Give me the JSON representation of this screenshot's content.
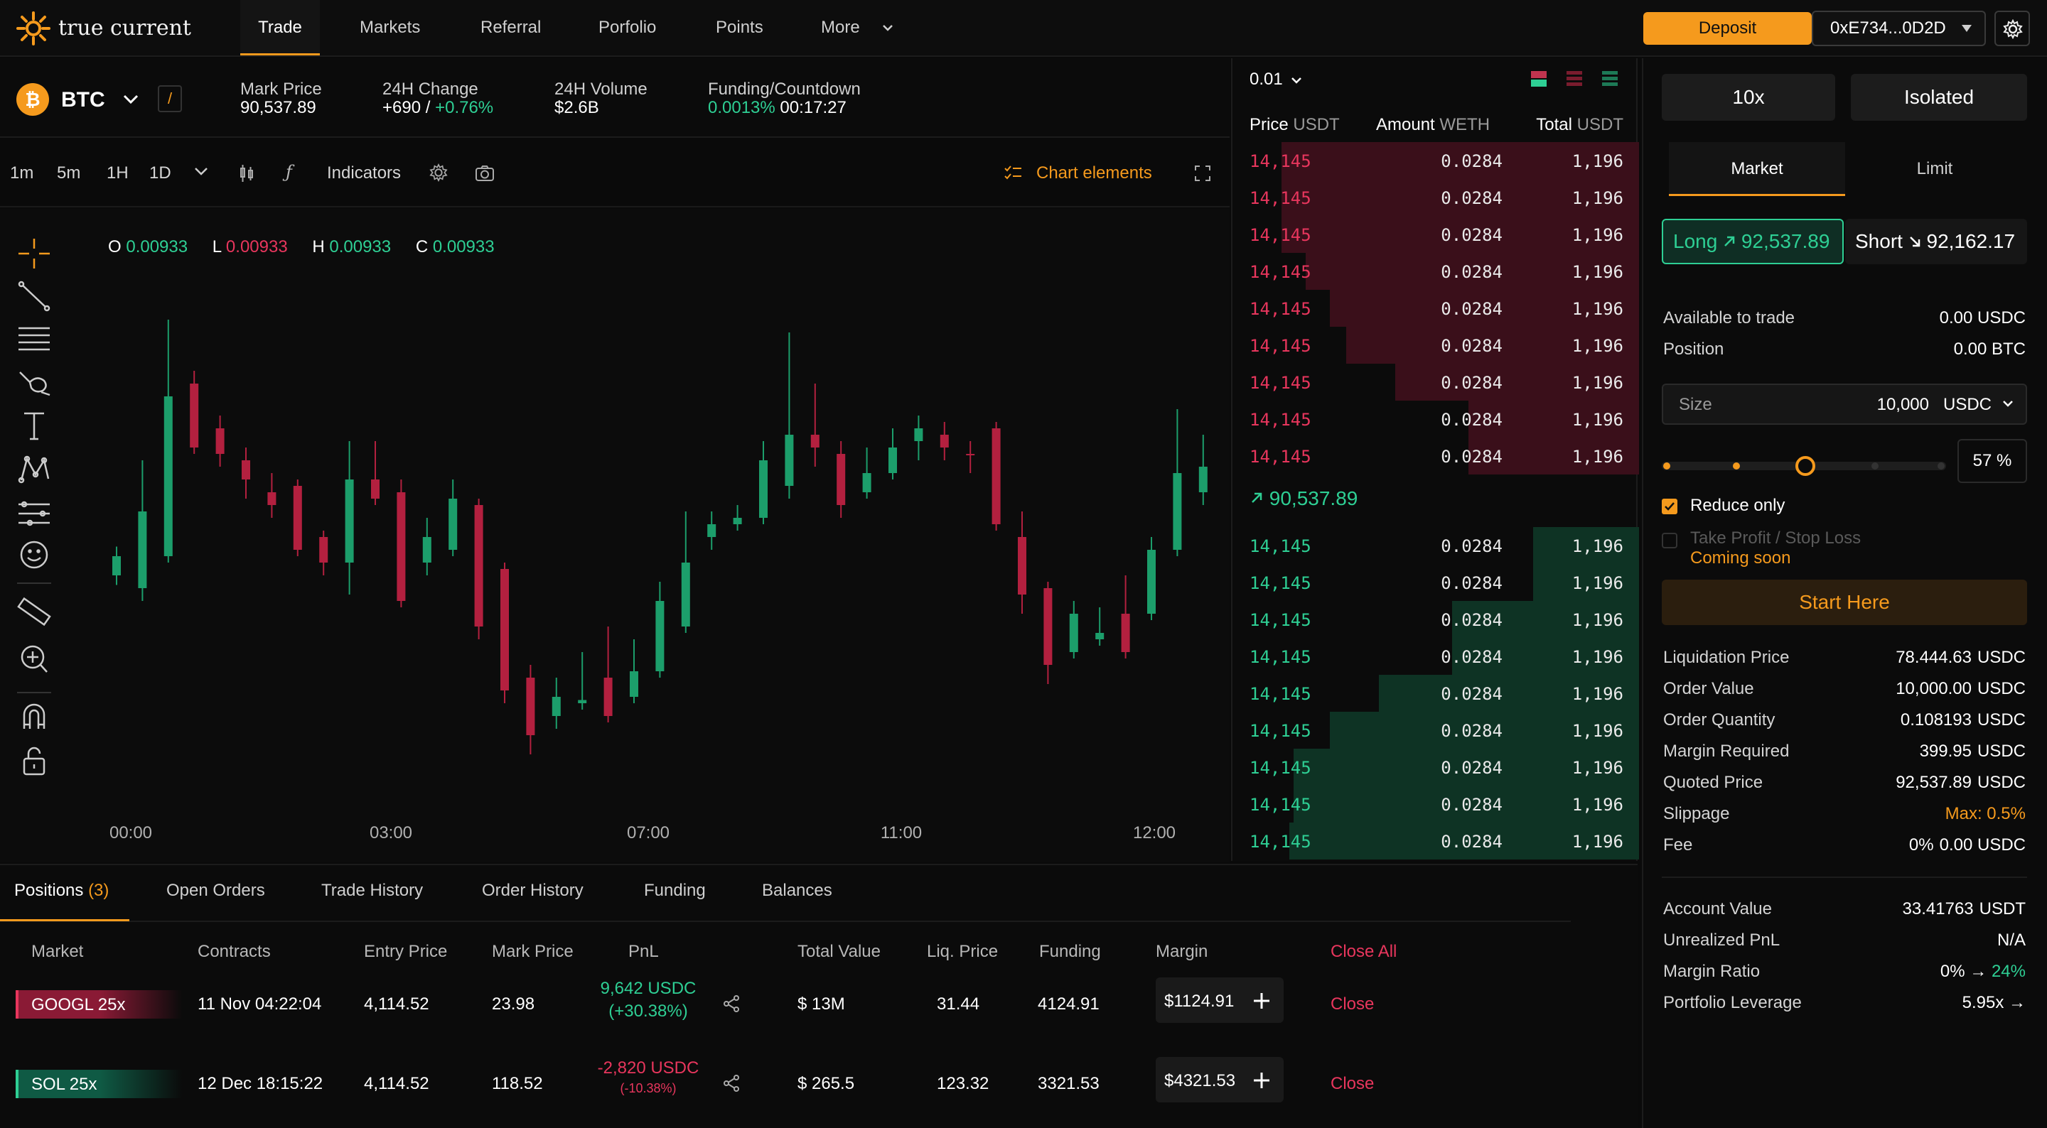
{
  "app": {
    "brand": "true current"
  },
  "nav": {
    "tabs": [
      "Trade",
      "Markets",
      "Referral",
      "Porfolio",
      "Points",
      "More"
    ],
    "deposit": "Deposit",
    "wallet": "0xE734...0D2D"
  },
  "market": {
    "symbol": "BTC",
    "star": "/",
    "mark_price_label": "Mark Price",
    "mark_price": "90,537.89",
    "change_label": "24H Change",
    "change_abs": "+690 /",
    "change_pct": "+0.76%",
    "volume_label": "24H Volume",
    "volume": "$2.6B",
    "funding_label": "Funding/Countdown",
    "funding_rate": "0.0013%",
    "countdown": "00:17:27"
  },
  "chart_toolbar": {
    "intervals": [
      "1m",
      "5m",
      "1H",
      "1D"
    ],
    "active_interval": "1H",
    "indicators": "Indicators",
    "chart_elements": "Chart elements"
  },
  "ohlc": {
    "o_label": "O",
    "o": "0.00933",
    "l_label": "L",
    "l": "0.00933",
    "h_label": "H",
    "h": "0.00933",
    "c_label": "C",
    "c": "0.00933"
  },
  "chart_data": {
    "type": "candlestick",
    "x_ticks": [
      "00:00",
      "03:00",
      "07:00",
      "11:00",
      "12:00"
    ],
    "candles": [
      {
        "o": 0.36,
        "c": 0.39,
        "h": 0.405,
        "l": 0.345
      },
      {
        "o": 0.34,
        "c": 0.46,
        "h": 0.54,
        "l": 0.32
      },
      {
        "o": 0.39,
        "c": 0.64,
        "h": 0.76,
        "l": 0.38
      },
      {
        "o": 0.66,
        "c": 0.56,
        "h": 0.68,
        "l": 0.55
      },
      {
        "o": 0.59,
        "c": 0.55,
        "h": 0.61,
        "l": 0.53
      },
      {
        "o": 0.54,
        "c": 0.51,
        "h": 0.56,
        "l": 0.48
      },
      {
        "o": 0.49,
        "c": 0.47,
        "h": 0.52,
        "l": 0.45
      },
      {
        "o": 0.5,
        "c": 0.4,
        "h": 0.51,
        "l": 0.39
      },
      {
        "o": 0.42,
        "c": 0.38,
        "h": 0.43,
        "l": 0.36
      },
      {
        "o": 0.38,
        "c": 0.51,
        "h": 0.57,
        "l": 0.33
      },
      {
        "o": 0.51,
        "c": 0.48,
        "h": 0.57,
        "l": 0.47
      },
      {
        "o": 0.49,
        "c": 0.32,
        "h": 0.51,
        "l": 0.31
      },
      {
        "o": 0.38,
        "c": 0.42,
        "h": 0.45,
        "l": 0.36
      },
      {
        "o": 0.4,
        "c": 0.48,
        "h": 0.51,
        "l": 0.39
      },
      {
        "o": 0.47,
        "c": 0.28,
        "h": 0.48,
        "l": 0.26
      },
      {
        "o": 0.37,
        "c": 0.18,
        "h": 0.38,
        "l": 0.16
      },
      {
        "o": 0.2,
        "c": 0.11,
        "h": 0.22,
        "l": 0.08
      },
      {
        "o": 0.14,
        "c": 0.17,
        "h": 0.2,
        "l": 0.12
      },
      {
        "o": 0.16,
        "c": 0.165,
        "h": 0.24,
        "l": 0.15
      },
      {
        "o": 0.2,
        "c": 0.14,
        "h": 0.28,
        "l": 0.13
      },
      {
        "o": 0.17,
        "c": 0.21,
        "h": 0.26,
        "l": 0.16
      },
      {
        "o": 0.21,
        "c": 0.32,
        "h": 0.35,
        "l": 0.2
      },
      {
        "o": 0.28,
        "c": 0.38,
        "h": 0.46,
        "l": 0.27
      },
      {
        "o": 0.42,
        "c": 0.44,
        "h": 0.46,
        "l": 0.4
      },
      {
        "o": 0.44,
        "c": 0.45,
        "h": 0.47,
        "l": 0.43
      },
      {
        "o": 0.45,
        "c": 0.54,
        "h": 0.57,
        "l": 0.44
      },
      {
        "o": 0.5,
        "c": 0.58,
        "h": 0.74,
        "l": 0.48
      },
      {
        "o": 0.58,
        "c": 0.56,
        "h": 0.66,
        "l": 0.53
      },
      {
        "o": 0.55,
        "c": 0.47,
        "h": 0.57,
        "l": 0.45
      },
      {
        "o": 0.49,
        "c": 0.52,
        "h": 0.56,
        "l": 0.48
      },
      {
        "o": 0.52,
        "c": 0.56,
        "h": 0.59,
        "l": 0.51
      },
      {
        "o": 0.57,
        "c": 0.59,
        "h": 0.61,
        "l": 0.54
      },
      {
        "o": 0.58,
        "c": 0.56,
        "h": 0.6,
        "l": 0.54
      },
      {
        "o": 0.55,
        "c": 0.548,
        "h": 0.57,
        "l": 0.52
      },
      {
        "o": 0.59,
        "c": 0.44,
        "h": 0.6,
        "l": 0.43
      },
      {
        "o": 0.42,
        "c": 0.33,
        "h": 0.46,
        "l": 0.3
      },
      {
        "o": 0.34,
        "c": 0.22,
        "h": 0.35,
        "l": 0.19
      },
      {
        "o": 0.24,
        "c": 0.3,
        "h": 0.32,
        "l": 0.23
      },
      {
        "o": 0.26,
        "c": 0.27,
        "h": 0.31,
        "l": 0.25
      },
      {
        "o": 0.3,
        "c": 0.24,
        "h": 0.36,
        "l": 0.23
      },
      {
        "o": 0.3,
        "c": 0.4,
        "h": 0.42,
        "l": 0.29
      },
      {
        "o": 0.4,
        "c": 0.52,
        "h": 0.62,
        "l": 0.39
      },
      {
        "o": 0.49,
        "c": 0.53,
        "h": 0.58,
        "l": 0.47
      }
    ]
  },
  "orderbook": {
    "tick": "0.01",
    "col_price": "Price",
    "col_price_unit": "USDT",
    "col_amount": "Amount",
    "col_amount_unit": "WETH",
    "col_total": "Total",
    "col_total_unit": "USDT",
    "asks": [
      {
        "price": "14,145",
        "amount": "0.0284",
        "total": "1,196",
        "depth": 0.88
      },
      {
        "price": "14,145",
        "amount": "0.0284",
        "total": "1,196",
        "depth": 0.88
      },
      {
        "price": "14,145",
        "amount": "0.0284",
        "total": "1,196",
        "depth": 0.88
      },
      {
        "price": "14,145",
        "amount": "0.0284",
        "total": "1,196",
        "depth": 0.82
      },
      {
        "price": "14,145",
        "amount": "0.0284",
        "total": "1,196",
        "depth": 0.76
      },
      {
        "price": "14,145",
        "amount": "0.0284",
        "total": "1,196",
        "depth": 0.72
      },
      {
        "price": "14,145",
        "amount": "0.0284",
        "total": "1,196",
        "depth": 0.6
      },
      {
        "price": "14,145",
        "amount": "0.0284",
        "total": "1,196",
        "depth": 0.42
      },
      {
        "price": "14,145",
        "amount": "0.0284",
        "total": "1,196",
        "depth": 0.42
      }
    ],
    "mid_price": "90,537.89",
    "bids": [
      {
        "price": "14,145",
        "amount": "0.0284",
        "total": "1,196",
        "depth": 0.26
      },
      {
        "price": "14,145",
        "amount": "0.0284",
        "total": "1,196",
        "depth": 0.26
      },
      {
        "price": "14,145",
        "amount": "0.0284",
        "total": "1,196",
        "depth": 0.46
      },
      {
        "price": "14,145",
        "amount": "0.0284",
        "total": "1,196",
        "depth": 0.46
      },
      {
        "price": "14,145",
        "amount": "0.0284",
        "total": "1,196",
        "depth": 0.64
      },
      {
        "price": "14,145",
        "amount": "0.0284",
        "total": "1,196",
        "depth": 0.76
      },
      {
        "price": "14,145",
        "amount": "0.0284",
        "total": "1,196",
        "depth": 0.85
      },
      {
        "price": "14,145",
        "amount": "0.0284",
        "total": "1,196",
        "depth": 0.85
      },
      {
        "price": "14,145",
        "amount": "0.0284",
        "total": "1,196",
        "depth": 0.86
      }
    ]
  },
  "order_form": {
    "leverage": "10x",
    "margin_mode": "Isolated",
    "tab_market": "Market",
    "tab_limit": "Limit",
    "long_label": "Long",
    "long_price": "92,537.89",
    "short_label": "Short",
    "short_price": "92,162.17",
    "available_label": "Available to trade",
    "available_val": "0.00",
    "available_unit": "USDC",
    "position_label": "Position",
    "position_val": "0.00",
    "position_unit": "BTC",
    "size_label": "Size",
    "size_val": "10,000",
    "size_unit": "USDC",
    "slider_pct": "57 %",
    "slider_value": 0.57,
    "reduce_only": "Reduce only",
    "tpsl": "Take Profit / Stop Loss",
    "coming_soon": "Coming soon",
    "start_here": "Start Here",
    "details": [
      {
        "label": "Liquidation Price",
        "value": "78.444.63",
        "unit": "USDC"
      },
      {
        "label": "Order Value",
        "value": "10,000.00",
        "unit": "USDC"
      },
      {
        "label": "Order Quantity",
        "value": "0.108193",
        "unit": "USDC"
      },
      {
        "label": "Margin Required",
        "value": "399.95",
        "unit": "USDC"
      },
      {
        "label": "Quoted Price",
        "value": "92,537.89",
        "unit": "USDC"
      },
      {
        "label": "Slippage",
        "value": "Max: 0.5%",
        "unit": ""
      },
      {
        "label": "Fee",
        "value": "0%",
        "unit": "0.00 USDC"
      }
    ],
    "account": [
      {
        "label": "Account Value",
        "value": "33.41763",
        "unit": "USDT"
      },
      {
        "label": "Unrealized PnL",
        "value": "N/A",
        "unit": ""
      },
      {
        "label": "Margin Ratio",
        "value": "0%",
        "unit": "24%"
      },
      {
        "label": "Portfolio Leverage",
        "value": "5.95x",
        "unit": ""
      }
    ]
  },
  "positions": {
    "tabs": [
      "Positions",
      "Open Orders",
      "Trade History",
      "Order History",
      "Funding",
      "Balances"
    ],
    "count": "(3)",
    "headers": [
      "Market",
      "Contracts",
      "Entry Price",
      "Mark Price",
      "PnL",
      "Total Value",
      "Liq. Price",
      "Funding",
      "Margin"
    ],
    "close_all": "Close All",
    "rows": [
      {
        "market": "GOOGL 25x",
        "side": "short",
        "contracts": "11 Nov 04:22:04",
        "entry": "4,114.52",
        "mark": "23.98",
        "pnl": "9,642 USDC",
        "pnl_pct": "(+30.38%)",
        "pnl_sign": "pos",
        "total": "$ 13M",
        "liq": "31.44",
        "funding": "4124.91",
        "margin": "$1124.91",
        "close": "Close"
      },
      {
        "market": "SOL 25x",
        "side": "long",
        "contracts": "12 Dec 18:15:22",
        "entry": "4,114.52",
        "mark": "118.52",
        "pnl": "-2,820 USDC",
        "pnl_pct": "(-10.38%)",
        "pnl_sign": "neg",
        "total": "$ 265.5",
        "liq": "123.32",
        "funding": "3321.53",
        "margin": "$4321.53",
        "close": "Close"
      }
    ]
  }
}
